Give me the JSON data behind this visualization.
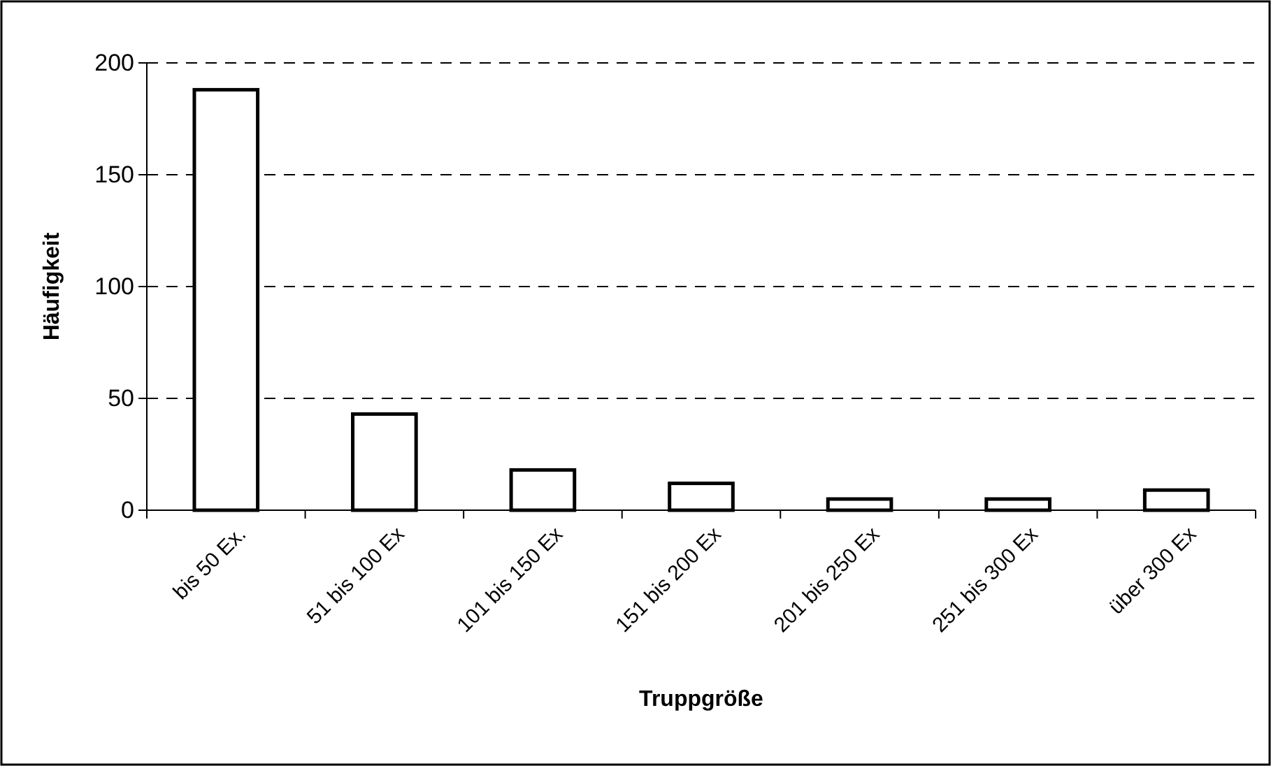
{
  "chart_data": {
    "type": "bar",
    "xlabel": "Truppgröße",
    "ylabel": "Häufigkeit",
    "categories": [
      "bis 50 Ex.",
      "51 bis 100 Ex",
      "101 bis 150 Ex",
      "151 bis 200 Ex",
      "201 bis 250 Ex",
      "251 bis 300 Ex",
      "über 300 Ex"
    ],
    "values": [
      188,
      43,
      18,
      12,
      5,
      5,
      9
    ],
    "color": "#ffffff",
    "ylim": [
      0,
      200
    ],
    "yticks": [
      0,
      50,
      100,
      150,
      200
    ],
    "grid": "y",
    "line_style": "dashed"
  }
}
